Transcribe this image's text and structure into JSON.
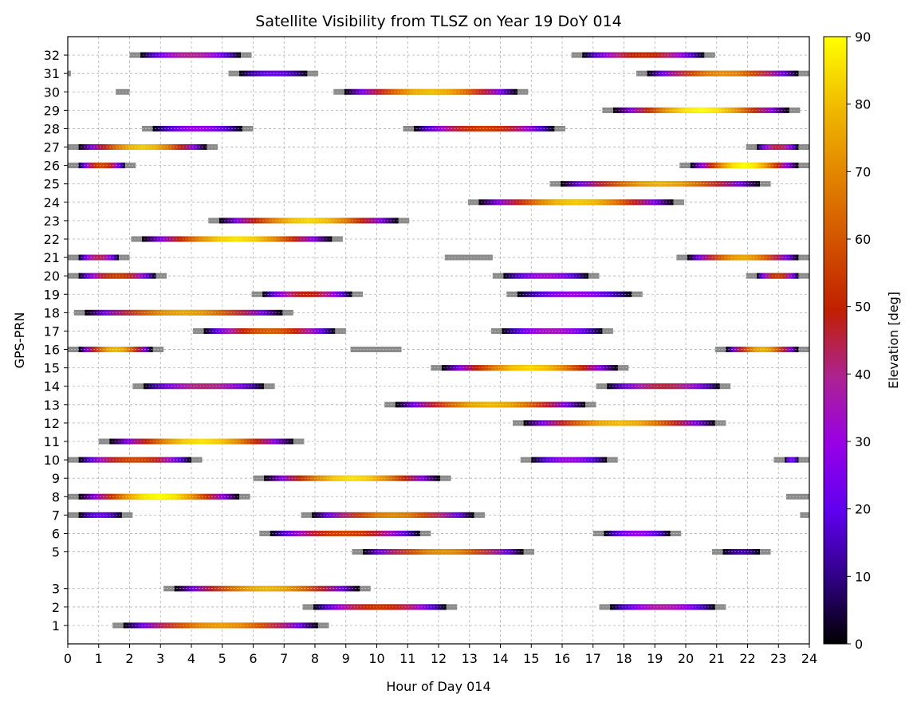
{
  "chart_data": {
    "type": "bar",
    "subtype": "horizontal-timeline",
    "title": "Satellite Visibility from TLSZ on Year 19 DoY 014",
    "xlabel": "Hour of Day 014",
    "ylabel": "GPS-PRN",
    "xlim": [
      0,
      24
    ],
    "ylim": [
      0,
      33
    ],
    "xticks": [
      "0",
      "1",
      "2",
      "3",
      "4",
      "5",
      "6",
      "7",
      "8",
      "9",
      "10",
      "11",
      "12",
      "13",
      "14",
      "15",
      "16",
      "17",
      "18",
      "19",
      "20",
      "21",
      "22",
      "23",
      "24"
    ],
    "yticks": [
      "1",
      "2",
      "3",
      "5",
      "6",
      "7",
      "8",
      "9",
      "10",
      "11",
      "12",
      "13",
      "14",
      "15",
      "16",
      "17",
      "18",
      "19",
      "20",
      "21",
      "22",
      "23",
      "24",
      "25",
      "26",
      "27",
      "28",
      "29",
      "30",
      "31",
      "32"
    ],
    "grid": true,
    "colorbar": {
      "label": "Elevation [deg]",
      "min": 0,
      "max": 90,
      "ticks": [
        "0",
        "10",
        "20",
        "30",
        "40",
        "50",
        "60",
        "70",
        "80",
        "90"
      ],
      "colormap": "gnuplot"
    },
    "series": [
      {
        "prn": 1,
        "passes": [
          {
            "start": 1.45,
            "end": 8.45,
            "peak": 74
          }
        ]
      },
      {
        "prn": 2,
        "passes": [
          {
            "start": 7.6,
            "end": 12.6,
            "peak": 54
          },
          {
            "start": 17.2,
            "end": 21.3,
            "peak": 38
          }
        ]
      },
      {
        "prn": 3,
        "passes": [
          {
            "start": 3.1,
            "end": 9.8,
            "peak": 79
          }
        ]
      },
      {
        "prn": 5,
        "passes": [
          {
            "start": 9.2,
            "end": 15.1,
            "peak": 72
          },
          {
            "start": 20.85,
            "end": 22.75,
            "peak": 14
          }
        ]
      },
      {
        "prn": 6,
        "passes": [
          {
            "start": 6.2,
            "end": 11.75,
            "peak": 58
          },
          {
            "start": 17.0,
            "end": 19.85,
            "peak": 30
          }
        ]
      },
      {
        "prn": 7,
        "passes": [
          {
            "start": 0.0,
            "end": 2.1,
            "peak": 22
          },
          {
            "start": 7.55,
            "end": 13.5,
            "peak": 70
          },
          {
            "start": 23.7,
            "end": 24.0,
            "peak": 5
          }
        ]
      },
      {
        "prn": 8,
        "passes": [
          {
            "start": 0.0,
            "end": 5.9,
            "peak": 90
          },
          {
            "start": 23.25,
            "end": 24.0,
            "peak": 22
          }
        ]
      },
      {
        "prn": 9,
        "passes": [
          {
            "start": 6.0,
            "end": 12.4,
            "peak": 86
          }
        ]
      },
      {
        "prn": 10,
        "passes": [
          {
            "start": 0.0,
            "end": 4.35,
            "peak": 58
          },
          {
            "start": 14.65,
            "end": 17.8,
            "peak": 30
          },
          {
            "start": 22.85,
            "end": 24.0,
            "peak": 24
          }
        ]
      },
      {
        "prn": 11,
        "passes": [
          {
            "start": 1.0,
            "end": 7.65,
            "peak": 86
          }
        ]
      },
      {
        "prn": 12,
        "passes": [
          {
            "start": 14.4,
            "end": 21.3,
            "peak": 80
          }
        ]
      },
      {
        "prn": 13,
        "passes": [
          {
            "start": 10.25,
            "end": 17.1,
            "peak": 79
          }
        ]
      },
      {
        "prn": 14,
        "passes": [
          {
            "start": 2.1,
            "end": 6.7,
            "peak": 42
          },
          {
            "start": 17.1,
            "end": 21.45,
            "peak": 46
          }
        ]
      },
      {
        "prn": 15,
        "passes": [
          {
            "start": 11.75,
            "end": 18.15,
            "peak": 84
          }
        ]
      },
      {
        "prn": 16,
        "passes": [
          {
            "start": 0.0,
            "end": 3.1,
            "peak": 80
          },
          {
            "start": 9.15,
            "end": 10.8,
            "peak": 3
          },
          {
            "start": 20.95,
            "end": 24.0,
            "peak": 78
          }
        ]
      },
      {
        "prn": 17,
        "passes": [
          {
            "start": 4.05,
            "end": 9.0,
            "peak": 62
          },
          {
            "start": 13.7,
            "end": 17.65,
            "peak": 35
          }
        ]
      },
      {
        "prn": 18,
        "passes": [
          {
            "start": 0.2,
            "end": 7.3,
            "peak": 76
          }
        ]
      },
      {
        "prn": 19,
        "passes": [
          {
            "start": 5.95,
            "end": 9.55,
            "peak": 50
          },
          {
            "start": 14.2,
            "end": 18.6,
            "peak": 30
          }
        ]
      },
      {
        "prn": 20,
        "passes": [
          {
            "start": 0.0,
            "end": 3.2,
            "peak": 56
          },
          {
            "start": 13.75,
            "end": 17.2,
            "peak": 32
          },
          {
            "start": 21.95,
            "end": 24.0,
            "peak": 55
          }
        ]
      },
      {
        "prn": 21,
        "passes": [
          {
            "start": 0.0,
            "end": 2.0,
            "peak": 44
          },
          {
            "start": 12.2,
            "end": 13.75,
            "peak": 3
          },
          {
            "start": 19.7,
            "end": 24.0,
            "peak": 76
          }
        ]
      },
      {
        "prn": 22,
        "passes": [
          {
            "start": 2.05,
            "end": 8.9,
            "peak": 86
          }
        ]
      },
      {
        "prn": 23,
        "passes": [
          {
            "start": 4.55,
            "end": 11.05,
            "peak": 84
          }
        ]
      },
      {
        "prn": 24,
        "passes": [
          {
            "start": 12.95,
            "end": 19.95,
            "peak": 82
          }
        ]
      },
      {
        "prn": 25,
        "passes": [
          {
            "start": 15.6,
            "end": 22.75,
            "peak": 78
          }
        ]
      },
      {
        "prn": 26,
        "passes": [
          {
            "start": 0.0,
            "end": 2.2,
            "peak": 58
          },
          {
            "start": 19.8,
            "end": 24.0,
            "peak": 90
          }
        ]
      },
      {
        "prn": 27,
        "passes": [
          {
            "start": 0.0,
            "end": 4.85,
            "peak": 82
          },
          {
            "start": 21.95,
            "end": 24.0,
            "peak": 46
          }
        ]
      },
      {
        "prn": 28,
        "passes": [
          {
            "start": 2.4,
            "end": 6.0,
            "peak": 30
          },
          {
            "start": 10.85,
            "end": 16.1,
            "peak": 56
          }
        ]
      },
      {
        "prn": 29,
        "passes": [
          {
            "start": 17.3,
            "end": 23.7,
            "peak": 90
          }
        ]
      },
      {
        "prn": 30,
        "passes": [
          {
            "start": 1.55,
            "end": 2.0,
            "peak": 2
          },
          {
            "start": 8.6,
            "end": 14.9,
            "peak": 80
          }
        ]
      },
      {
        "prn": 31,
        "passes": [
          {
            "start": 0.0,
            "end": 0.1,
            "peak": 2
          },
          {
            "start": 5.2,
            "end": 8.1,
            "peak": 22
          },
          {
            "start": 18.4,
            "end": 24.0,
            "peak": 72
          }
        ]
      },
      {
        "prn": 32,
        "passes": [
          {
            "start": 2.0,
            "end": 5.95,
            "peak": 40
          },
          {
            "start": 16.3,
            "end": 20.95,
            "peak": 52
          }
        ]
      }
    ]
  }
}
